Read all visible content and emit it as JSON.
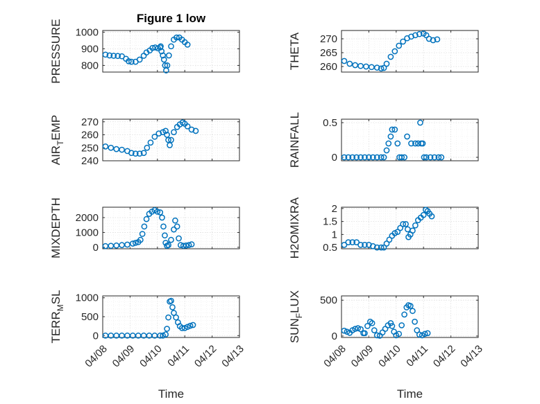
{
  "chart_data": [
    {
      "type": "scatter",
      "title": "Figure 1 low",
      "ylabel": "PRESSURE",
      "ylim": [
        760,
        1010
      ],
      "yticks": [
        800,
        900,
        1000
      ],
      "xlim": [
        0,
        5
      ],
      "xticklabels": [
        "",
        "",
        "",
        "",
        "",
        ""
      ],
      "points": [
        [
          0.1,
          865
        ],
        [
          0.25,
          860
        ],
        [
          0.4,
          858
        ],
        [
          0.55,
          857
        ],
        [
          0.7,
          855
        ],
        [
          0.85,
          840
        ],
        [
          0.95,
          825
        ],
        [
          1.05,
          822
        ],
        [
          1.2,
          822
        ],
        [
          1.35,
          835
        ],
        [
          1.5,
          858
        ],
        [
          1.6,
          878
        ],
        [
          1.72,
          890
        ],
        [
          1.82,
          905
        ],
        [
          1.92,
          908
        ],
        [
          2.02,
          903
        ],
        [
          2.1,
          908
        ],
        [
          2.12,
          915
        ],
        [
          2.15,
          885
        ],
        [
          2.2,
          860
        ],
        [
          2.24,
          835
        ],
        [
          2.28,
          800
        ],
        [
          2.32,
          770
        ],
        [
          2.36,
          800
        ],
        [
          2.42,
          860
        ],
        [
          2.5,
          915
        ],
        [
          2.6,
          955
        ],
        [
          2.7,
          968
        ],
        [
          2.8,
          968
        ],
        [
          2.9,
          955
        ],
        [
          3.0,
          940
        ],
        [
          3.1,
          925
        ]
      ]
    },
    {
      "type": "scatter",
      "title": "",
      "ylabel": "THETA",
      "ylim": [
        258,
        273
      ],
      "yticks": [
        260,
        265,
        270
      ],
      "xlim": [
        0,
        5
      ],
      "xticklabels": [
        "",
        "",
        "",
        "",
        "",
        ""
      ],
      "points": [
        [
          0.1,
          262
        ],
        [
          0.3,
          261
        ],
        [
          0.5,
          260.5
        ],
        [
          0.7,
          260.2
        ],
        [
          0.9,
          260
        ],
        [
          1.1,
          259.8
        ],
        [
          1.3,
          259.6
        ],
        [
          1.45,
          259.3
        ],
        [
          1.55,
          259.5
        ],
        [
          1.65,
          261
        ],
        [
          1.8,
          263.5
        ],
        [
          1.95,
          265.5
        ],
        [
          2.1,
          267.5
        ],
        [
          2.25,
          269
        ],
        [
          2.4,
          270.2
        ],
        [
          2.55,
          270.8
        ],
        [
          2.7,
          271.3
        ],
        [
          2.85,
          271.7
        ],
        [
          3.0,
          271.9
        ],
        [
          3.1,
          271.3
        ],
        [
          3.2,
          270
        ],
        [
          3.35,
          269.5
        ],
        [
          3.5,
          269.8
        ]
      ]
    },
    {
      "type": "scatter",
      "title": "",
      "ylabel": "AIR_TEMP",
      "ylim": [
        240,
        272
      ],
      "yticks": [
        240,
        250,
        260,
        270
      ],
      "xlim": [
        0,
        5
      ],
      "xticklabels": [
        "",
        "",
        "",
        "",
        "",
        ""
      ],
      "points": [
        [
          0.1,
          251
        ],
        [
          0.3,
          250
        ],
        [
          0.5,
          249
        ],
        [
          0.7,
          248.5
        ],
        [
          0.9,
          247.5
        ],
        [
          1.05,
          246
        ],
        [
          1.2,
          245.5
        ],
        [
          1.35,
          245.5
        ],
        [
          1.5,
          246
        ],
        [
          1.62,
          250
        ],
        [
          1.75,
          254
        ],
        [
          1.9,
          258.5
        ],
        [
          2.05,
          261
        ],
        [
          2.2,
          262
        ],
        [
          2.3,
          263
        ],
        [
          2.35,
          260
        ],
        [
          2.4,
          256
        ],
        [
          2.45,
          252
        ],
        [
          2.5,
          256
        ],
        [
          2.6,
          262
        ],
        [
          2.72,
          266
        ],
        [
          2.82,
          268
        ],
        [
          2.92,
          269.5
        ],
        [
          3.0,
          268.5
        ],
        [
          3.1,
          266.5
        ],
        [
          3.25,
          264
        ],
        [
          3.4,
          263
        ]
      ]
    },
    {
      "type": "scatter",
      "title": "",
      "ylabel": "RAINFALL",
      "ylim": [
        -0.05,
        0.55
      ],
      "yticks": [
        0,
        0.5
      ],
      "xlim": [
        0,
        5
      ],
      "xticklabels": [
        "",
        "",
        "",
        "",
        "",
        ""
      ],
      "points": [
        [
          0.1,
          0
        ],
        [
          0.25,
          0
        ],
        [
          0.4,
          0
        ],
        [
          0.55,
          0
        ],
        [
          0.7,
          0
        ],
        [
          0.85,
          0
        ],
        [
          1.0,
          0
        ],
        [
          1.15,
          0
        ],
        [
          1.3,
          0
        ],
        [
          1.45,
          0
        ],
        [
          1.55,
          0
        ],
        [
          1.65,
          0.1
        ],
        [
          1.72,
          0.2
        ],
        [
          1.8,
          0.3
        ],
        [
          1.85,
          0.4
        ],
        [
          1.95,
          0.4
        ],
        [
          2.05,
          0.2
        ],
        [
          2.12,
          0
        ],
        [
          2.2,
          0
        ],
        [
          2.3,
          0
        ],
        [
          2.4,
          0.3
        ],
        [
          2.55,
          0.2
        ],
        [
          2.7,
          0.2
        ],
        [
          2.8,
          0.2
        ],
        [
          2.88,
          0.5
        ],
        [
          2.92,
          0.2
        ],
        [
          2.97,
          0.2
        ],
        [
          3.02,
          0
        ],
        [
          3.1,
          0
        ],
        [
          3.25,
          0
        ],
        [
          3.4,
          0
        ],
        [
          3.55,
          0
        ],
        [
          3.65,
          0
        ]
      ]
    },
    {
      "type": "scatter",
      "title": "",
      "ylabel": "MIXDEPTH",
      "ylim": [
        -100,
        2700
      ],
      "yticks": [
        0,
        1000,
        2000
      ],
      "xlim": [
        0,
        5
      ],
      "xticklabels": [
        "",
        "",
        "",
        "",
        "",
        ""
      ],
      "points": [
        [
          0.1,
          80
        ],
        [
          0.3,
          100
        ],
        [
          0.5,
          120
        ],
        [
          0.7,
          150
        ],
        [
          0.9,
          180
        ],
        [
          1.1,
          250
        ],
        [
          1.2,
          300
        ],
        [
          1.3,
          350
        ],
        [
          1.38,
          500
        ],
        [
          1.45,
          900
        ],
        [
          1.52,
          1400
        ],
        [
          1.6,
          1900
        ],
        [
          1.7,
          2250
        ],
        [
          1.8,
          2400
        ],
        [
          1.9,
          2500
        ],
        [
          2.0,
          2400
        ],
        [
          2.1,
          2350
        ],
        [
          2.17,
          2000
        ],
        [
          2.22,
          1400
        ],
        [
          2.27,
          800
        ],
        [
          2.3,
          300
        ],
        [
          2.35,
          100
        ],
        [
          2.4,
          150
        ],
        [
          2.5,
          500
        ],
        [
          2.6,
          1200
        ],
        [
          2.65,
          1800
        ],
        [
          2.72,
          1400
        ],
        [
          2.78,
          600
        ],
        [
          2.85,
          150
        ],
        [
          2.95,
          100
        ],
        [
          3.05,
          120
        ],
        [
          3.15,
          150
        ],
        [
          3.25,
          200
        ]
      ]
    },
    {
      "type": "scatter",
      "title": "",
      "ylabel": "H2OMIXRA",
      "ylim": [
        0.45,
        2.05
      ],
      "yticks": [
        0.5,
        1,
        1.5,
        2
      ],
      "xlim": [
        0,
        5
      ],
      "xticklabels": [
        "",
        "",
        "",
        "",
        "",
        ""
      ],
      "points": [
        [
          0.1,
          0.6
        ],
        [
          0.25,
          0.7
        ],
        [
          0.4,
          0.7
        ],
        [
          0.55,
          0.7
        ],
        [
          0.7,
          0.6
        ],
        [
          0.85,
          0.6
        ],
        [
          1.0,
          0.6
        ],
        [
          1.15,
          0.55
        ],
        [
          1.3,
          0.5
        ],
        [
          1.45,
          0.5
        ],
        [
          1.55,
          0.5
        ],
        [
          1.65,
          0.65
        ],
        [
          1.75,
          0.8
        ],
        [
          1.85,
          0.95
        ],
        [
          1.95,
          1.05
        ],
        [
          2.05,
          1.1
        ],
        [
          2.15,
          1.25
        ],
        [
          2.25,
          1.4
        ],
        [
          2.35,
          1.4
        ],
        [
          2.42,
          1.2
        ],
        [
          2.45,
          0.9
        ],
        [
          2.52,
          1.0
        ],
        [
          2.6,
          1.15
        ],
        [
          2.7,
          1.35
        ],
        [
          2.8,
          1.55
        ],
        [
          2.9,
          1.65
        ],
        [
          3.0,
          1.75
        ],
        [
          3.08,
          1.95
        ],
        [
          3.15,
          1.9
        ],
        [
          3.22,
          1.8
        ],
        [
          3.3,
          1.7
        ]
      ]
    },
    {
      "type": "scatter",
      "title": "",
      "ylabel": "TERR_MSL",
      "ylim": [
        -50,
        1050
      ],
      "yticks": [
        0,
        500,
        1000
      ],
      "xlim": [
        0,
        5
      ],
      "xticklabels": [
        "04/08",
        "04/09",
        "04/10",
        "04/11",
        "04/12",
        "04/13"
      ],
      "xlabel": "Time",
      "points": [
        [
          0.1,
          0
        ],
        [
          0.3,
          0
        ],
        [
          0.5,
          0
        ],
        [
          0.7,
          0
        ],
        [
          0.9,
          0
        ],
        [
          1.1,
          0
        ],
        [
          1.3,
          0
        ],
        [
          1.5,
          0
        ],
        [
          1.7,
          0
        ],
        [
          1.9,
          0
        ],
        [
          2.1,
          0
        ],
        [
          2.2,
          0
        ],
        [
          2.3,
          30
        ],
        [
          2.35,
          180
        ],
        [
          2.4,
          480
        ],
        [
          2.45,
          900
        ],
        [
          2.5,
          920
        ],
        [
          2.55,
          750
        ],
        [
          2.6,
          600
        ],
        [
          2.68,
          480
        ],
        [
          2.75,
          350
        ],
        [
          2.82,
          250
        ],
        [
          2.9,
          200
        ],
        [
          3.0,
          200
        ],
        [
          3.1,
          230
        ],
        [
          3.2,
          260
        ],
        [
          3.3,
          280
        ]
      ]
    },
    {
      "type": "scatter",
      "title": "",
      "ylabel": "SUN_FLUX",
      "ylim": [
        -20,
        560
      ],
      "yticks": [
        0,
        500
      ],
      "xlim": [
        0,
        5
      ],
      "xticklabels": [
        "04/08",
        "04/09",
        "04/10",
        "04/11",
        "04/12",
        "04/13"
      ],
      "xlabel": "Time",
      "points": [
        [
          0.1,
          75
        ],
        [
          0.2,
          60
        ],
        [
          0.3,
          45
        ],
        [
          0.4,
          80
        ],
        [
          0.5,
          100
        ],
        [
          0.6,
          110
        ],
        [
          0.7,
          95
        ],
        [
          0.8,
          40
        ],
        [
          0.85,
          40
        ],
        [
          0.95,
          140
        ],
        [
          1.05,
          200
        ],
        [
          1.12,
          180
        ],
        [
          1.2,
          80
        ],
        [
          1.3,
          10
        ],
        [
          1.4,
          5
        ],
        [
          1.5,
          50
        ],
        [
          1.6,
          100
        ],
        [
          1.7,
          150
        ],
        [
          1.8,
          180
        ],
        [
          1.85,
          140
        ],
        [
          1.92,
          60
        ],
        [
          2.0,
          10
        ],
        [
          2.1,
          30
        ],
        [
          2.2,
          150
        ],
        [
          2.3,
          300
        ],
        [
          2.38,
          400
        ],
        [
          2.45,
          430
        ],
        [
          2.52,
          420
        ],
        [
          2.6,
          350
        ],
        [
          2.68,
          200
        ],
        [
          2.76,
          80
        ],
        [
          2.85,
          20
        ],
        [
          2.95,
          10
        ],
        [
          3.05,
          30
        ],
        [
          3.15,
          40
        ]
      ]
    }
  ]
}
